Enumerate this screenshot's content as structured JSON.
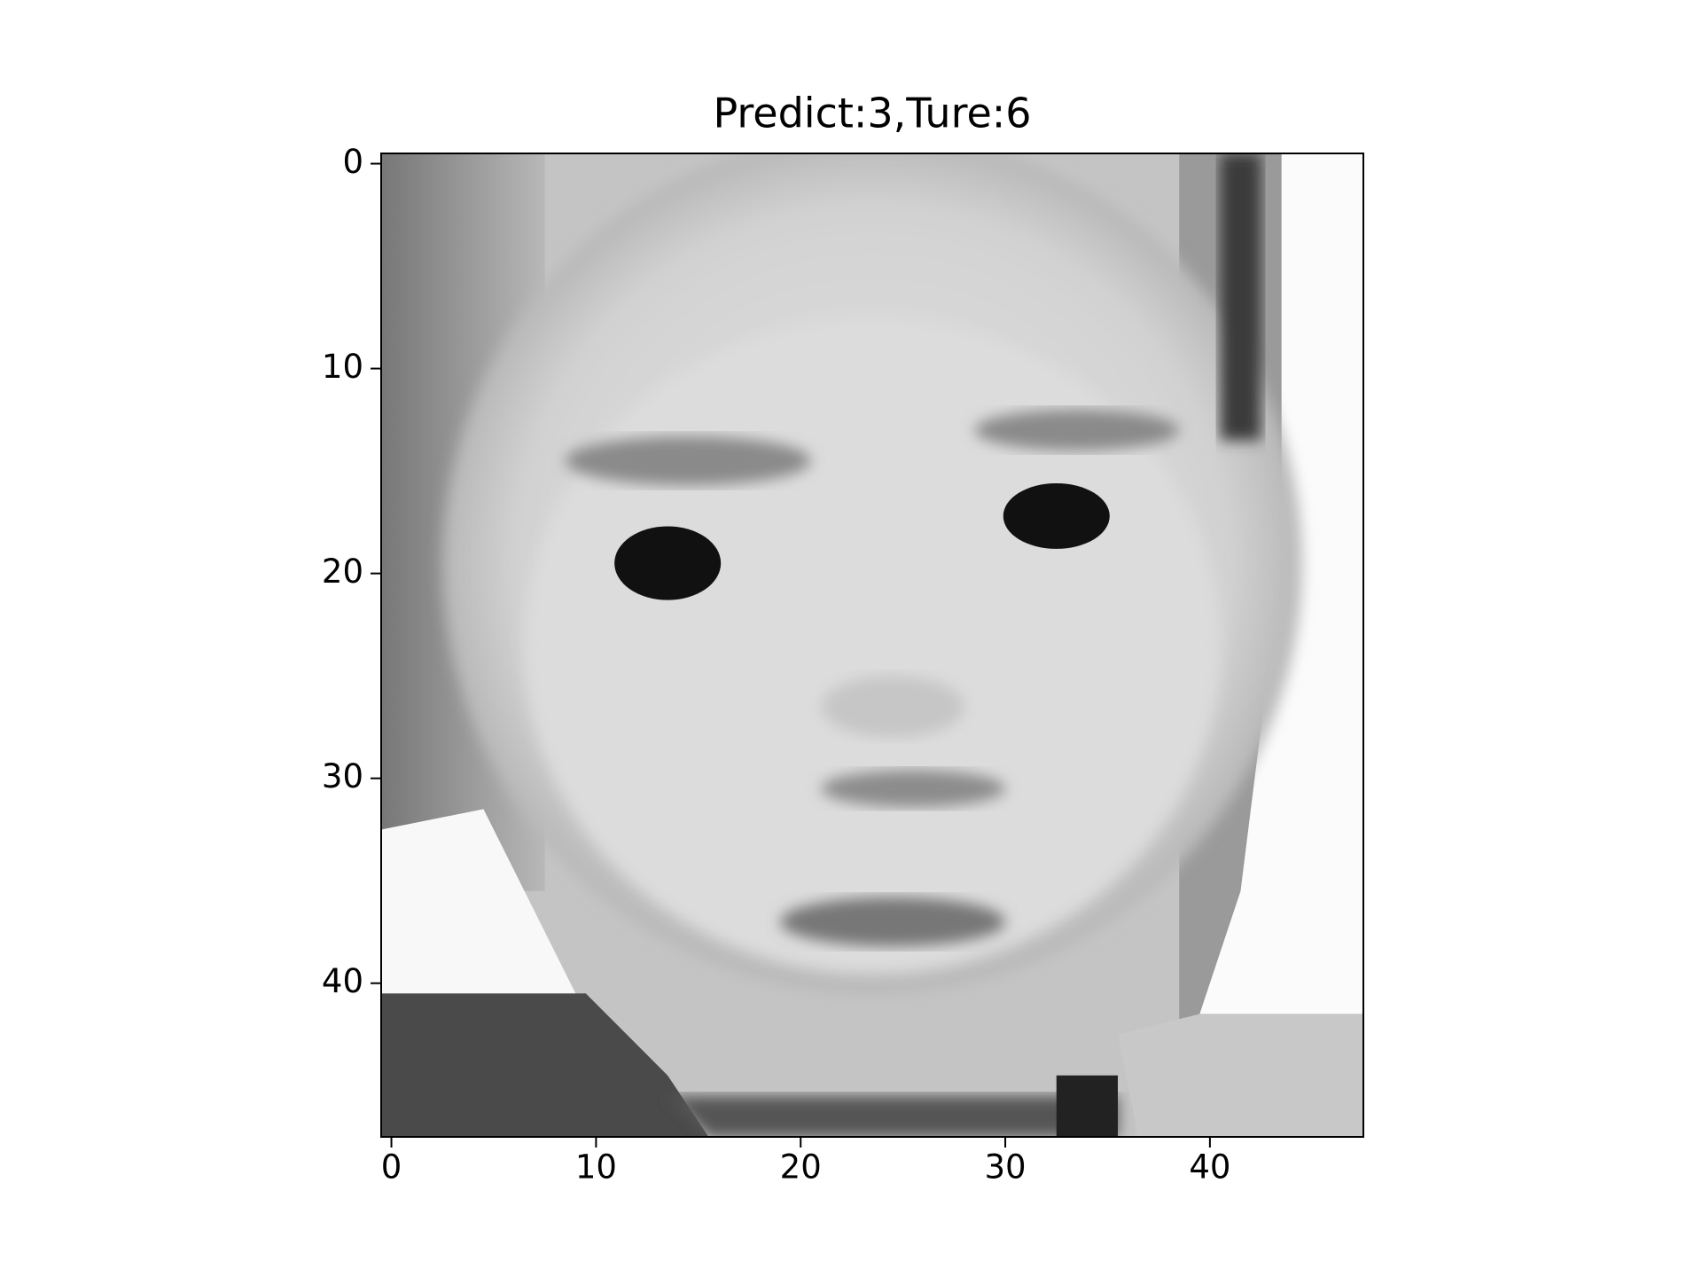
{
  "chart_data": {
    "type": "image",
    "title": "Predict:3,Ture:6",
    "xlim": [
      -0.5,
      47.5
    ],
    "ylim": [
      47.5,
      -0.5
    ],
    "xticks": [
      0,
      10,
      20,
      30,
      40
    ],
    "yticks": [
      0,
      10,
      20,
      30,
      40
    ],
    "colormap": "gray"
  }
}
